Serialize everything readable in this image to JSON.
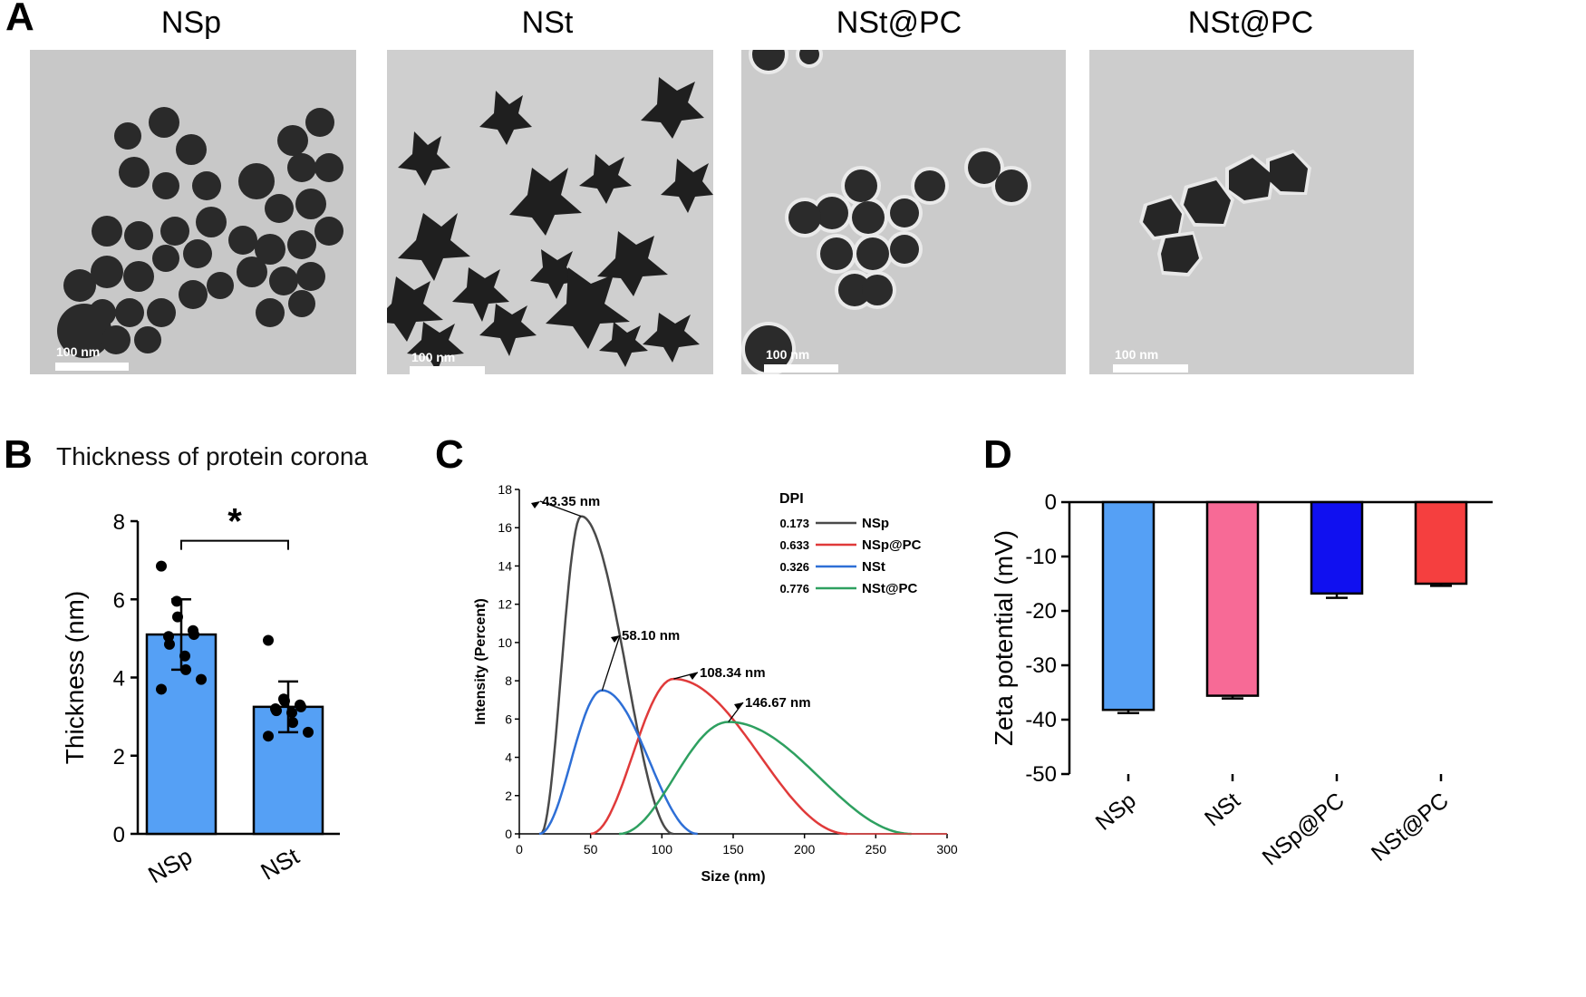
{
  "panels": {
    "a": {
      "letter": "A",
      "images": [
        {
          "title": "NSp",
          "scale_label": "100 nm"
        },
        {
          "title": "NSt",
          "scale_label": "100 nm"
        },
        {
          "title": "NSt@PC",
          "scale_label": "100 nm"
        },
        {
          "title": "NSt@PC",
          "scale_label": "100 nm"
        }
      ]
    },
    "b": {
      "letter": "B"
    },
    "c": {
      "letter": "C"
    },
    "d": {
      "letter": "D"
    }
  },
  "chart_data": [
    {
      "id": "B",
      "type": "bar",
      "title": "Thickness of protein corona",
      "ylabel": "Thickness (nm)",
      "xlabel": "",
      "ylim": [
        0,
        8
      ],
      "yticks": [
        0,
        2,
        4,
        6,
        8
      ],
      "categories": [
        "NSp",
        "NSt"
      ],
      "values": [
        5.1,
        3.25
      ],
      "error_sd": [
        0.9,
        0.65
      ],
      "points": [
        [
          6.85,
          5.95,
          5.55,
          5.2,
          5.1,
          5.05,
          4.85,
          4.55,
          4.2,
          3.95,
          3.7
        ],
        [
          4.95,
          3.45,
          3.4,
          3.3,
          3.25,
          3.2,
          3.15,
          3.1,
          2.85,
          2.6,
          2.5
        ]
      ],
      "significance": "*",
      "bar_color": "#55A0F5",
      "grid": false
    },
    {
      "id": "C",
      "type": "line",
      "xlabel": "Size (nm)",
      "ylabel": "Intensity (Percent)",
      "xlim": [
        0,
        300
      ],
      "ylim": [
        0,
        18
      ],
      "xticks": [
        0,
        50,
        100,
        150,
        200,
        250,
        300
      ],
      "yticks": [
        0,
        2,
        4,
        6,
        8,
        10,
        12,
        14,
        16,
        18
      ],
      "legend_title": "DPI",
      "legend_position": "top-right",
      "series": [
        {
          "name": "NSp",
          "dpi": "0.173",
          "color": "#4a4a4a",
          "peak_x": 43.35,
          "peak_y": 16.6,
          "start_x": 15,
          "end_x": 108,
          "annotation": "43.35 nm"
        },
        {
          "name": "NSp@PC",
          "dpi": "0.633",
          "color": "#e03a3a",
          "peak_x": 108.34,
          "peak_y": 8.1,
          "start_x": 50,
          "end_x": 230,
          "annotation": "108.34 nm"
        },
        {
          "name": "NSt",
          "dpi": "0.326",
          "color": "#2e6fd6",
          "peak_x": 58.1,
          "peak_y": 7.5,
          "start_x": 14,
          "end_x": 125,
          "annotation": "58.10 nm"
        },
        {
          "name": "NSt@PC",
          "dpi": "0.776",
          "color": "#2ea060",
          "peak_x": 146.67,
          "peak_y": 5.85,
          "start_x": 70,
          "end_x": 275,
          "annotation": "146.67 nm"
        }
      ],
      "grid": false
    },
    {
      "id": "D",
      "type": "bar",
      "ylabel": "Zeta potential (mV)",
      "xlabel": "",
      "ylim": [
        -50,
        0
      ],
      "yticks": [
        0,
        -10,
        -20,
        -30,
        -40,
        -50
      ],
      "categories": [
        "NSp",
        "NSt",
        "NSp@PC",
        "NSt@PC"
      ],
      "values": [
        -38.2,
        -35.6,
        -16.8,
        -15.0
      ],
      "error_sd": [
        0.6,
        0.5,
        0.8,
        0.4
      ],
      "colors": [
        "#55A0F5",
        "#F76A96",
        "#1010F0",
        "#F53F3F"
      ],
      "grid": false
    }
  ]
}
